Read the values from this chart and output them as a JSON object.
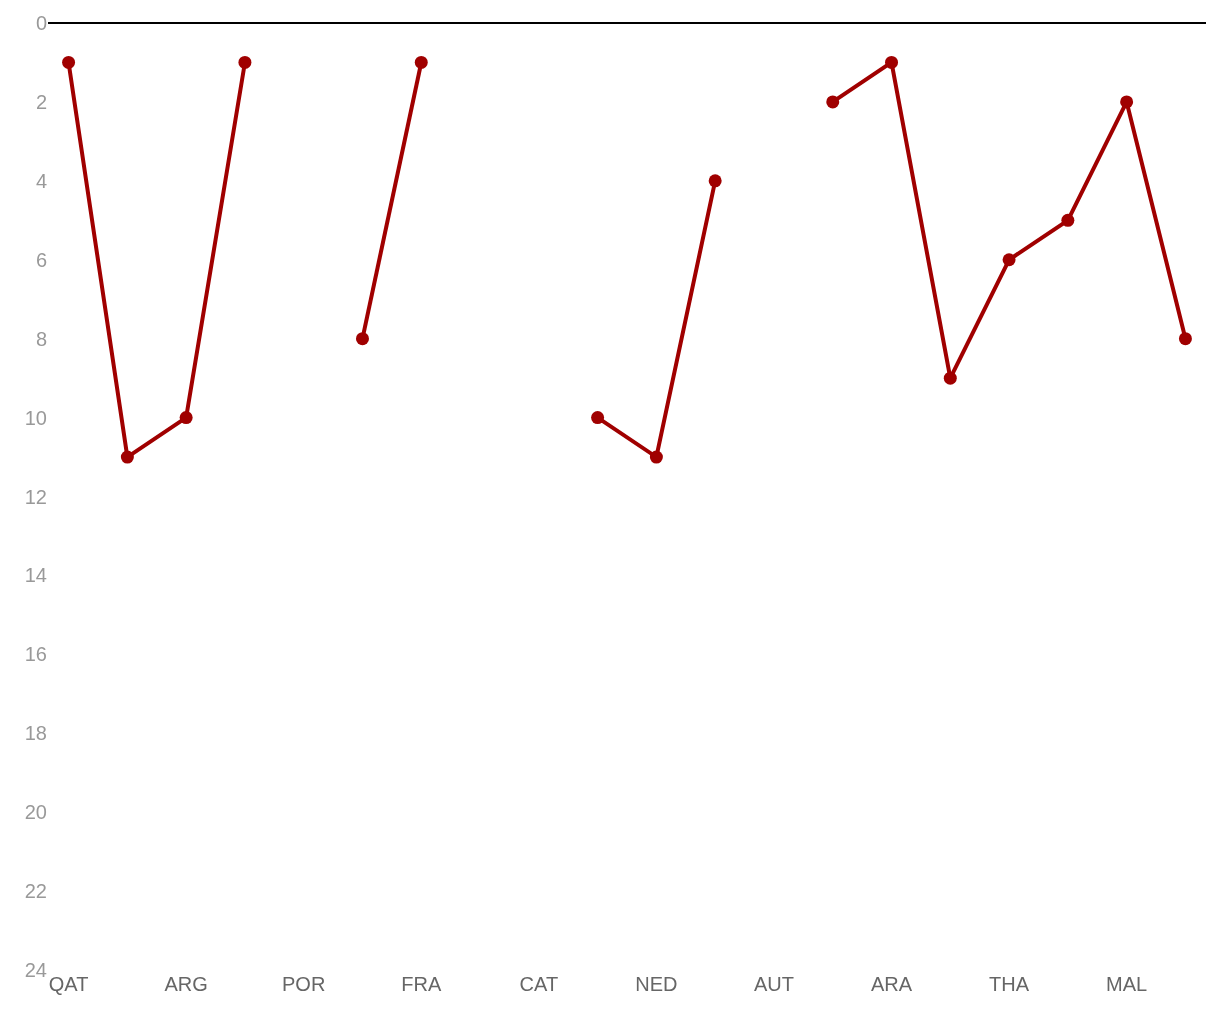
{
  "chart_data": {
    "type": "line",
    "categories": [
      "QAT",
      null,
      "ARG",
      null,
      "POR",
      null,
      "FRA",
      null,
      "CAT",
      null,
      "NED",
      null,
      "AUT",
      null,
      "ARA",
      null,
      "THA",
      null,
      "MAL",
      null
    ],
    "series": [
      {
        "color": "#a00000",
        "values": [
          1,
          11,
          10,
          1,
          null,
          8,
          1,
          null,
          null,
          10,
          11,
          4,
          null,
          2,
          1,
          9,
          6,
          5,
          2,
          8
        ]
      }
    ],
    "ylim": [
      24,
      0
    ],
    "yticks": [
      0,
      2,
      4,
      6,
      8,
      10,
      12,
      14,
      16,
      18,
      20,
      22,
      24
    ],
    "legend": false,
    "marker": "circle",
    "line_style": "solid"
  }
}
